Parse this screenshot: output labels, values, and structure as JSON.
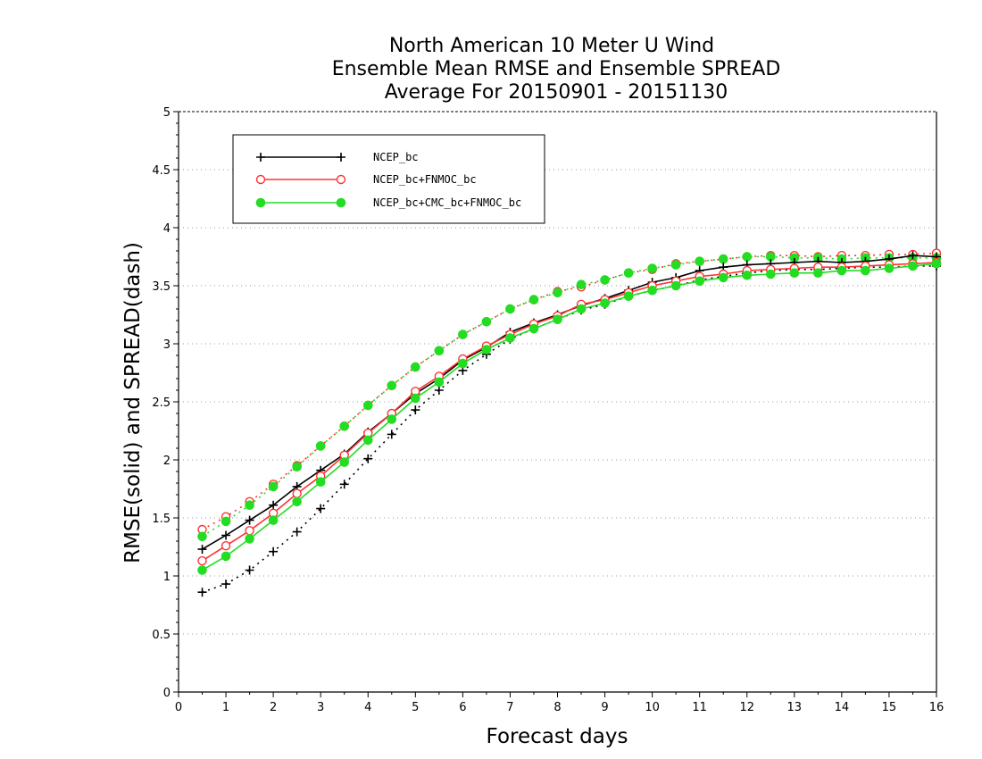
{
  "chart_data": {
    "type": "line",
    "title_lines": [
      "North American 10 Meter U Wind",
      "Ensemble Mean RMSE and Ensemble SPREAD",
      "Average For 20150901 - 20151130"
    ],
    "xlabel": "Forecast days",
    "ylabel": "RMSE(solid) and SPREAD(dash)",
    "xlim": [
      0,
      16
    ],
    "ylim": [
      0,
      5
    ],
    "xticks": [
      "0",
      "1",
      "2",
      "3",
      "4",
      "5",
      "6",
      "7",
      "8",
      "9",
      "10",
      "11",
      "12",
      "13",
      "14",
      "15",
      "16"
    ],
    "yticks": [
      "0",
      "0.5",
      "1",
      "1.5",
      "2",
      "2.5",
      "3",
      "3.5",
      "4",
      "4.5",
      "5"
    ],
    "grid": true,
    "legend_position": "top-left",
    "x": [
      0.5,
      1,
      1.5,
      2,
      2.5,
      3,
      3.5,
      4,
      4.5,
      5,
      5.5,
      6,
      6.5,
      7,
      7.5,
      8,
      8.5,
      9,
      9.5,
      10,
      10.5,
      11,
      11.5,
      12,
      12.5,
      13,
      13.5,
      14,
      14.5,
      15,
      15.5,
      16
    ],
    "series": [
      {
        "name": "NCEP_bc",
        "color": "#000000",
        "marker": "plus",
        "rmse": [
          1.23,
          1.35,
          1.48,
          1.61,
          1.77,
          1.91,
          2.05,
          2.24,
          2.4,
          2.57,
          2.7,
          2.86,
          2.97,
          3.1,
          3.18,
          3.25,
          3.33,
          3.39,
          3.46,
          3.53,
          3.57,
          3.63,
          3.66,
          3.68,
          3.69,
          3.7,
          3.71,
          3.7,
          3.71,
          3.73,
          3.76,
          3.75
        ],
        "spread": [
          0.86,
          0.93,
          1.05,
          1.21,
          1.38,
          1.58,
          1.79,
          2.01,
          2.22,
          2.43,
          2.6,
          2.77,
          2.91,
          3.04,
          3.13,
          3.21,
          3.29,
          3.34,
          3.41,
          3.46,
          3.5,
          3.55,
          3.58,
          3.61,
          3.63,
          3.64,
          3.64,
          3.65,
          3.66,
          3.66,
          3.67,
          3.67
        ]
      },
      {
        "name": "NCEP_bc+FNMOC_bc",
        "color": "#ff3333",
        "marker": "circle-open",
        "rmse": [
          1.13,
          1.26,
          1.39,
          1.54,
          1.71,
          1.86,
          2.04,
          2.23,
          2.4,
          2.59,
          2.72,
          2.87,
          2.98,
          3.08,
          3.17,
          3.24,
          3.34,
          3.38,
          3.44,
          3.5,
          3.54,
          3.58,
          3.6,
          3.63,
          3.64,
          3.65,
          3.66,
          3.66,
          3.67,
          3.68,
          3.69,
          3.7
        ],
        "spread": [
          1.4,
          1.51,
          1.64,
          1.79,
          1.95,
          2.12,
          2.29,
          2.47,
          2.64,
          2.8,
          2.94,
          3.08,
          3.19,
          3.3,
          3.38,
          3.45,
          3.49,
          3.55,
          3.61,
          3.64,
          3.69,
          3.71,
          3.73,
          3.75,
          3.76,
          3.76,
          3.75,
          3.76,
          3.76,
          3.77,
          3.77,
          3.78
        ]
      },
      {
        "name": "NCEP_bc+CMC_bc+FNMOC_bc",
        "color": "#22dd22",
        "marker": "circle-filled",
        "rmse": [
          1.05,
          1.17,
          1.32,
          1.48,
          1.64,
          1.81,
          1.98,
          2.17,
          2.35,
          2.53,
          2.67,
          2.83,
          2.95,
          3.05,
          3.13,
          3.21,
          3.3,
          3.35,
          3.41,
          3.46,
          3.5,
          3.54,
          3.57,
          3.59,
          3.6,
          3.61,
          3.61,
          3.63,
          3.63,
          3.65,
          3.67,
          3.69
        ],
        "spread": [
          1.34,
          1.47,
          1.61,
          1.77,
          1.94,
          2.12,
          2.29,
          2.47,
          2.64,
          2.8,
          2.94,
          3.08,
          3.19,
          3.3,
          3.38,
          3.44,
          3.51,
          3.55,
          3.61,
          3.65,
          3.68,
          3.71,
          3.73,
          3.75,
          3.75,
          3.74,
          3.74,
          3.73,
          3.74,
          3.74,
          3.74,
          3.74
        ]
      }
    ]
  }
}
